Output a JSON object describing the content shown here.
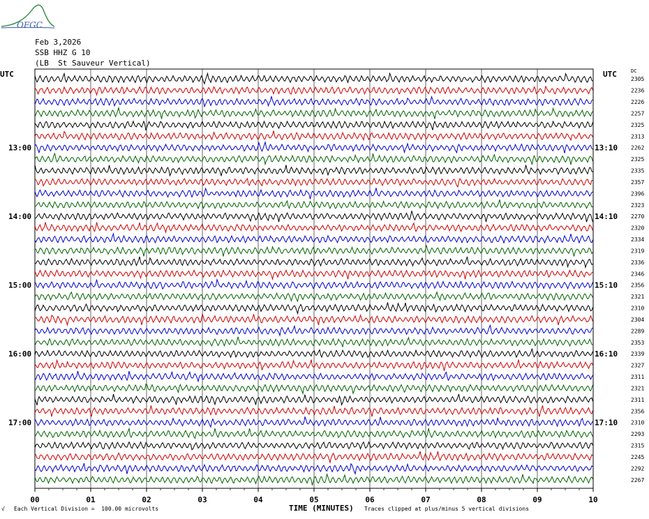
{
  "header": {
    "logo_text": "OFGC",
    "date": "Feb 3,2026",
    "channel": "SSB HHZ G 10",
    "station": "(LB  St Sauveur Vertical)"
  },
  "footer": {
    "mark": "√",
    "vertical_division": "Each Vertical Division =  100.00 microvolts",
    "clip_note": "Traces clipped at plus/minus 5 vertical divisions"
  },
  "chart_data": {
    "type": "line",
    "xlabel": "TIME (MINUTES)",
    "x_ticks": [
      "00",
      "01",
      "02",
      "03",
      "04",
      "05",
      "06",
      "07",
      "08",
      "09",
      "10"
    ],
    "xlim": [
      0,
      10
    ],
    "left_axis_label": "UTC",
    "right_axis_label": "UTC",
    "right_header_label": "DC",
    "left_time_labels": [
      "13:00",
      "14:00",
      "15:00",
      "16:00",
      "17:00"
    ],
    "right_time_labels": [
      "13:10",
      "14:10",
      "15:10",
      "16:10",
      "17:10"
    ],
    "trace_colors": [
      "#000000",
      "#d00000",
      "#0000cc",
      "#006400"
    ],
    "traces": [
      {
        "dc": "2305"
      },
      {
        "dc": "2236"
      },
      {
        "dc": "2226"
      },
      {
        "dc": "2257"
      },
      {
        "dc": "2325"
      },
      {
        "dc": "2313"
      },
      {
        "dc": "2262"
      },
      {
        "dc": "2325"
      },
      {
        "dc": "2335"
      },
      {
        "dc": "2357"
      },
      {
        "dc": "2396"
      },
      {
        "dc": "2323"
      },
      {
        "dc": "2270"
      },
      {
        "dc": "2320"
      },
      {
        "dc": "2334"
      },
      {
        "dc": "2319"
      },
      {
        "dc": "2336"
      },
      {
        "dc": "2346"
      },
      {
        "dc": "2356"
      },
      {
        "dc": "2321"
      },
      {
        "dc": "2310"
      },
      {
        "dc": "2304"
      },
      {
        "dc": "2289"
      },
      {
        "dc": "2353"
      },
      {
        "dc": "2339"
      },
      {
        "dc": "2327"
      },
      {
        "dc": "2311"
      },
      {
        "dc": "2321"
      },
      {
        "dc": "2311"
      },
      {
        "dc": "2356"
      },
      {
        "dc": "2310"
      },
      {
        "dc": "2293"
      },
      {
        "dc": "2315"
      },
      {
        "dc": "2245"
      },
      {
        "dc": "2292"
      },
      {
        "dc": "2267"
      }
    ],
    "grid": true
  }
}
